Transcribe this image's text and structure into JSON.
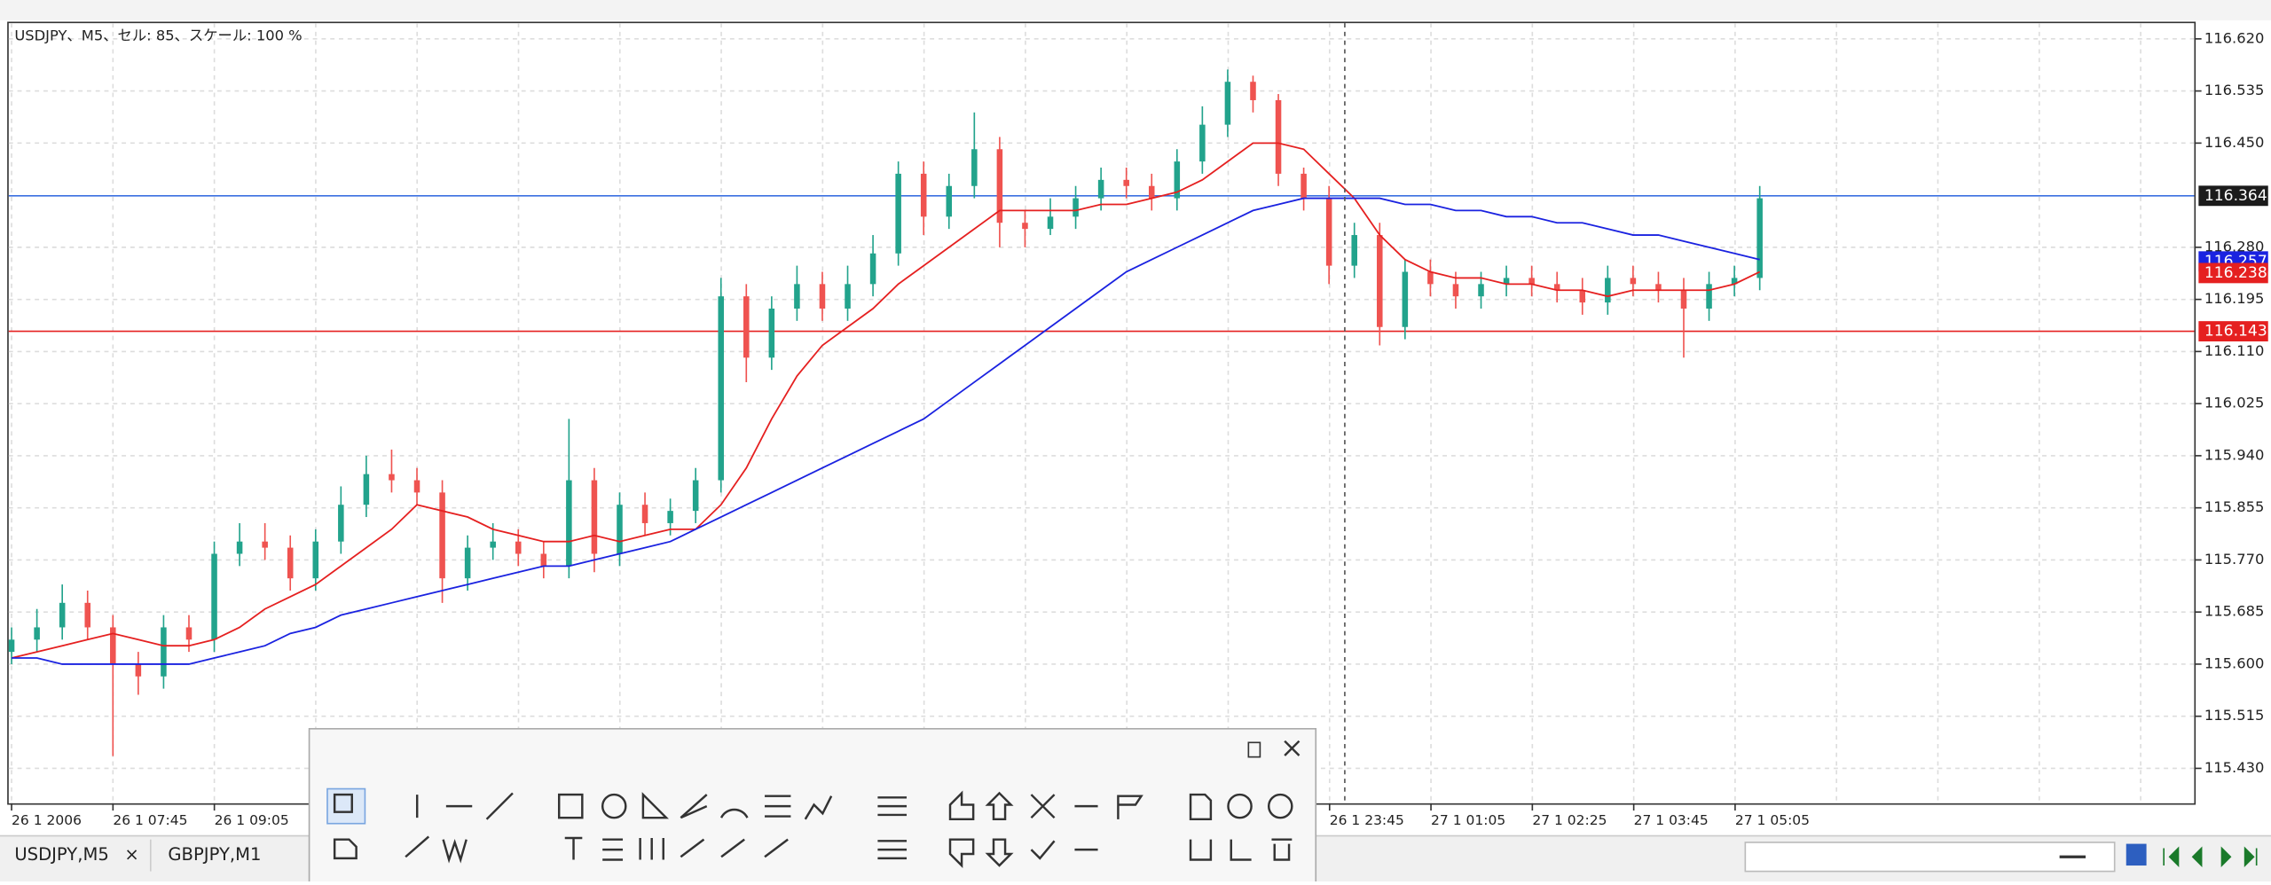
{
  "chart_data": {
    "type": "candlestick",
    "title": "USDJPY、M5、セル: 85、スケール: 100 %",
    "up_color": "#22a38c",
    "down_color": "#ef5350",
    "open": [
      115.62,
      115.64,
      115.66,
      115.7,
      115.66,
      115.6,
      115.58,
      115.66,
      115.64,
      115.78,
      115.8,
      115.79,
      115.74,
      115.8,
      115.86,
      115.91,
      115.9,
      115.88,
      115.74,
      115.79,
      115.8,
      115.78,
      115.76,
      115.9,
      115.78,
      115.86,
      115.83,
      115.85,
      115.9,
      116.2,
      116.1,
      116.18,
      116.22,
      116.18,
      116.22,
      116.27,
      116.4,
      116.33,
      116.38,
      116.44,
      116.32,
      116.31,
      116.33,
      116.36,
      116.39,
      116.38,
      116.36,
      116.42,
      116.48,
      116.55,
      116.52,
      116.4,
      116.36,
      116.25,
      116.3,
      116.15,
      116.24,
      116.22,
      116.2,
      116.22,
      116.23,
      116.22,
      116.21,
      116.19,
      116.23,
      116.22,
      116.21,
      116.18,
      116.22,
      116.23
    ],
    "high": [
      115.66,
      115.69,
      115.73,
      115.72,
      115.68,
      115.62,
      115.68,
      115.68,
      115.8,
      115.83,
      115.83,
      115.81,
      115.82,
      115.89,
      115.94,
      115.95,
      115.92,
      115.9,
      115.81,
      115.83,
      115.82,
      115.8,
      116.0,
      115.92,
      115.88,
      115.88,
      115.87,
      115.92,
      116.23,
      116.22,
      116.2,
      116.25,
      116.24,
      116.25,
      116.3,
      116.42,
      116.42,
      116.4,
      116.5,
      116.46,
      116.34,
      116.36,
      116.38,
      116.41,
      116.41,
      116.4,
      116.44,
      116.51,
      116.57,
      116.56,
      116.53,
      116.41,
      116.38,
      116.32,
      116.32,
      116.26,
      116.26,
      116.24,
      116.24,
      116.25,
      116.25,
      116.24,
      116.23,
      116.25,
      116.25,
      116.24,
      116.23,
      116.24,
      116.25,
      116.38
    ],
    "low": [
      115.6,
      115.62,
      115.64,
      115.64,
      115.45,
      115.55,
      115.56,
      115.62,
      115.62,
      115.76,
      115.77,
      115.72,
      115.72,
      115.78,
      115.84,
      115.88,
      115.86,
      115.7,
      115.72,
      115.77,
      115.76,
      115.74,
      115.74,
      115.75,
      115.76,
      115.81,
      115.81,
      115.83,
      115.88,
      116.06,
      116.08,
      116.16,
      116.16,
      116.16,
      116.2,
      116.25,
      116.3,
      116.31,
      116.36,
      116.28,
      116.28,
      116.3,
      116.31,
      116.34,
      116.36,
      116.34,
      116.34,
      116.4,
      116.46,
      116.5,
      116.38,
      116.34,
      116.22,
      116.23,
      116.12,
      116.13,
      116.2,
      116.18,
      116.18,
      116.2,
      116.2,
      116.19,
      116.17,
      116.17,
      116.2,
      116.19,
      116.1,
      116.16,
      116.2,
      116.21
    ],
    "close": [
      115.64,
      115.66,
      115.7,
      115.66,
      115.6,
      115.58,
      115.66,
      115.64,
      115.78,
      115.8,
      115.79,
      115.74,
      115.8,
      115.86,
      115.91,
      115.9,
      115.88,
      115.74,
      115.79,
      115.8,
      115.78,
      115.76,
      115.9,
      115.78,
      115.86,
      115.83,
      115.85,
      115.9,
      116.2,
      116.1,
      116.18,
      116.22,
      116.18,
      116.22,
      116.27,
      116.4,
      116.33,
      116.38,
      116.44,
      116.32,
      116.31,
      116.33,
      116.36,
      116.39,
      116.38,
      116.36,
      116.42,
      116.48,
      116.55,
      116.52,
      116.4,
      116.36,
      116.25,
      116.3,
      116.15,
      116.24,
      116.22,
      116.2,
      116.22,
      116.23,
      116.22,
      116.21,
      116.19,
      116.23,
      116.22,
      116.21,
      116.18,
      116.22,
      116.23,
      116.36
    ],
    "series": [
      {
        "color": "#e52020",
        "values": [
          115.61,
          115.62,
          115.63,
          115.64,
          115.65,
          115.64,
          115.63,
          115.63,
          115.64,
          115.66,
          115.69,
          115.71,
          115.73,
          115.76,
          115.79,
          115.82,
          115.86,
          115.85,
          115.84,
          115.82,
          115.81,
          115.8,
          115.8,
          115.81,
          115.8,
          115.81,
          115.82,
          115.82,
          115.86,
          115.92,
          116.0,
          116.07,
          116.12,
          116.15,
          116.18,
          116.22,
          116.25,
          116.28,
          116.31,
          116.34,
          116.34,
          116.34,
          116.34,
          116.35,
          116.35,
          116.36,
          116.37,
          116.39,
          116.42,
          116.45,
          116.45,
          116.44,
          116.4,
          116.36,
          116.3,
          116.26,
          116.24,
          116.23,
          116.23,
          116.22,
          116.22,
          116.21,
          116.21,
          116.2,
          116.21,
          116.21,
          116.21,
          116.21,
          116.22,
          116.24
        ]
      },
      {
        "color": "#1a22e0",
        "values": [
          115.61,
          115.61,
          115.6,
          115.6,
          115.6,
          115.6,
          115.6,
          115.6,
          115.61,
          115.62,
          115.63,
          115.65,
          115.66,
          115.68,
          115.69,
          115.7,
          115.71,
          115.72,
          115.73,
          115.74,
          115.75,
          115.76,
          115.76,
          115.77,
          115.78,
          115.79,
          115.8,
          115.82,
          115.84,
          115.86,
          115.88,
          115.9,
          115.92,
          115.94,
          115.96,
          115.98,
          116.0,
          116.03,
          116.06,
          116.09,
          116.12,
          116.15,
          116.18,
          116.21,
          116.24,
          116.26,
          116.28,
          116.3,
          116.32,
          116.34,
          116.35,
          116.36,
          116.36,
          116.36,
          116.36,
          116.35,
          116.35,
          116.34,
          116.34,
          116.33,
          116.33,
          116.32,
          116.32,
          116.31,
          116.3,
          116.3,
          116.29,
          116.28,
          116.27,
          116.26
        ]
      }
    ],
    "ylim": [
      115.373,
      116.648
    ],
    "yticks": [
      {
        "value": 116.62,
        "label": "116.620"
      },
      {
        "value": 116.535,
        "label": "116.535"
      },
      {
        "value": 116.45,
        "label": "116.450"
      },
      {
        "value": 116.28,
        "label": "116.280"
      },
      {
        "value": 116.195,
        "label": "116.195"
      },
      {
        "value": 116.11,
        "label": "116.110"
      },
      {
        "value": 116.025,
        "label": "116.025"
      },
      {
        "value": 115.94,
        "label": "115.940"
      },
      {
        "value": 115.855,
        "label": "115.855"
      },
      {
        "value": 115.77,
        "label": "115.770"
      },
      {
        "value": 115.685,
        "label": "115.685"
      },
      {
        "value": 115.6,
        "label": "115.600"
      },
      {
        "value": 115.515,
        "label": "115.515"
      },
      {
        "value": 115.43,
        "label": "115.430"
      }
    ],
    "hlines": [
      {
        "value": 116.364,
        "color": "#3a6fe0"
      },
      {
        "value": 116.143,
        "color": "#e52020"
      }
    ],
    "price_markers": [
      {
        "value": 116.364,
        "label": "116.364",
        "color": "#1b1b1b"
      },
      {
        "value": 116.257,
        "label": "116.257",
        "color": "#1a22e0"
      },
      {
        "value": 116.238,
        "label": "116.238",
        "color": "#e52020"
      },
      {
        "value": 116.143,
        "label": "116.143",
        "color": "#e52020"
      }
    ],
    "x_labels": [
      "26 1 2006",
      "26 1 07:45",
      "26 1 09:05",
      "26 1 23:45",
      "27 1 01:05",
      "27 1 02:25",
      "27 1 03:45",
      "27 1 05:05"
    ],
    "grid": true
  },
  "tabs": [
    "USDJPY,M5",
    "GBPJPY,M1"
  ],
  "tab_close": "×"
}
